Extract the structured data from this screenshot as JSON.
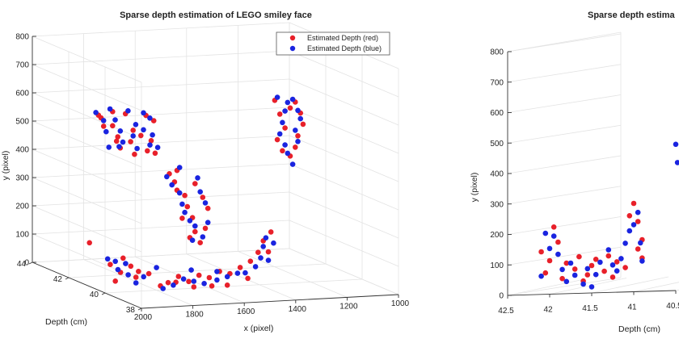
{
  "chart_data": [
    {
      "type": "scatter",
      "title": "Sparse depth estimation of LEGO smiley face",
      "xlabel": "x (pixel)",
      "ylabel": "y (pixel)",
      "zlabel": "Depth (cm)",
      "x_ticks": [
        "2000",
        "1800",
        "1600",
        "1400",
        "1200",
        "1000"
      ],
      "y_ticks": [
        "0",
        "100",
        "200",
        "300",
        "400",
        "500",
        "600",
        "700",
        "800"
      ],
      "z_ticks": [
        "38",
        "40",
        "42",
        "44"
      ],
      "legend_position": "top-right",
      "series": [
        {
          "name": "Estimated Depth (red)",
          "color": "#e8202a",
          "points": [
            [
              1955,
              600,
              41
            ],
            [
              1945,
              590,
              41
            ],
            [
              1935,
              560,
              41
            ],
            [
              1920,
              520,
              40.5
            ],
            [
              1900,
              560,
              41
            ],
            [
              1880,
              520,
              41
            ],
            [
              1870,
              480,
              41
            ],
            [
              1850,
              470,
              40.5
            ],
            [
              1830,
              500,
              41
            ],
            [
              1820,
              540,
              41
            ],
            [
              1800,
              480,
              40.5
            ],
            [
              1790,
              520,
              41
            ],
            [
              1770,
              470,
              40.5
            ],
            [
              1750,
              500,
              41
            ],
            [
              1770,
              590,
              41
            ],
            [
              1740,
              570,
              41
            ],
            [
              1900,
              610,
              41
            ],
            [
              1850,
              600,
              41
            ],
            [
              1750,
              410,
              40
            ],
            [
              1730,
              380,
              40
            ],
            [
              1720,
              350,
              40
            ],
            [
              1690,
              330,
              40
            ],
            [
              1680,
              290,
              40
            ],
            [
              1700,
              250,
              40
            ],
            [
              1660,
              250,
              40
            ],
            [
              1650,
              200,
              40
            ],
            [
              1670,
              180,
              40
            ],
            [
              1630,
              160,
              40
            ],
            [
              1610,
              210,
              40
            ],
            [
              1600,
              280,
              40
            ],
            [
              1620,
              320,
              40
            ],
            [
              1650,
              370,
              40
            ],
            [
              1720,
              420,
              40
            ],
            [
              1260,
              640,
              40
            ],
            [
              1240,
              600,
              40
            ],
            [
              1230,
              560,
              40
            ],
            [
              1250,
              520,
              40
            ],
            [
              1260,
              480,
              40
            ],
            [
              1280,
              450,
              40
            ],
            [
              1310,
              470,
              40
            ],
            [
              1330,
              510,
              40
            ],
            [
              1300,
              550,
              40
            ],
            [
              1320,
              600,
              40
            ],
            [
              1280,
              620,
              40
            ],
            [
              1340,
              650,
              40
            ],
            [
              1980,
              100,
              40
            ],
            [
              1990,
              150,
              41
            ],
            [
              1930,
              120,
              40
            ],
            [
              1900,
              90,
              40
            ],
            [
              1870,
              70,
              40
            ],
            [
              1830,
              60,
              40
            ],
            [
              1790,
              40,
              39.5
            ],
            [
              1750,
              60,
              39.5
            ],
            [
              1710,
              40,
              39.5
            ],
            [
              1670,
              60,
              39.5
            ],
            [
              1630,
              50,
              39.5
            ],
            [
              1590,
              70,
              39.5
            ],
            [
              1550,
              60,
              39.5
            ],
            [
              1510,
              80,
              39.5
            ],
            [
              1470,
              100,
              39.5
            ],
            [
              1440,
              130,
              39.5
            ],
            [
              1420,
              170,
              39.5
            ],
            [
              1400,
              130,
              39.5
            ],
            [
              1390,
              200,
              39.5
            ],
            [
              1960,
              40,
              40
            ],
            [
              1940,
              70,
              40
            ],
            [
              1880,
              50,
              40
            ],
            [
              1820,
              30,
              39.5
            ],
            [
              1760,
              40,
              39.5
            ],
            [
              1690,
              20,
              39.5
            ],
            [
              1620,
              20,
              39.5
            ],
            [
              1560,
              20,
              39.5
            ],
            [
              1480,
              40,
              39.5
            ]
          ]
        },
        {
          "name": "Estimated Depth (blue)",
          "color": "#1a24e0",
          "points": [
            [
              1965,
              610,
              41
            ],
            [
              1935,
              580,
              41
            ],
            [
              1925,
              540,
              41
            ],
            [
              1910,
              500,
              40.5
            ],
            [
              1890,
              580,
              41
            ],
            [
              1870,
              540,
              41
            ],
            [
              1860,
              500,
              41
            ],
            [
              1840,
              490,
              40.5
            ],
            [
              1820,
              520,
              41
            ],
            [
              1810,
              560,
              41
            ],
            [
              1790,
              500,
              40.5
            ],
            [
              1780,
              540,
              41
            ],
            [
              1760,
              490,
              40.5
            ],
            [
              1745,
              520,
              41
            ],
            [
              1780,
              600,
              41
            ],
            [
              1755,
              580,
              41
            ],
            [
              1910,
              620,
              41
            ],
            [
              1840,
              610,
              41
            ],
            [
              1950,
              500,
              40.5
            ],
            [
              1760,
              400,
              40
            ],
            [
              1740,
              370,
              40
            ],
            [
              1710,
              340,
              40
            ],
            [
              1700,
              300,
              40
            ],
            [
              1690,
              270,
              40
            ],
            [
              1670,
              240,
              40
            ],
            [
              1650,
              220,
              40
            ],
            [
              1660,
              170,
              40
            ],
            [
              1620,
              180,
              40
            ],
            [
              1600,
              230,
              40
            ],
            [
              1610,
              300,
              40
            ],
            [
              1630,
              340,
              40
            ],
            [
              1640,
              390,
              40
            ],
            [
              1710,
              430,
              40
            ],
            [
              1270,
              650,
              40
            ],
            [
              1250,
              610,
              40
            ],
            [
              1240,
              580,
              40
            ],
            [
              1260,
              540,
              40
            ],
            [
              1250,
              500,
              40
            ],
            [
              1290,
              460,
              40
            ],
            [
              1300,
              490,
              40
            ],
            [
              1320,
              530,
              40
            ],
            [
              1310,
              570,
              40
            ],
            [
              1300,
              610,
              40
            ],
            [
              1290,
              640,
              40
            ],
            [
              1330,
              660,
              40
            ],
            [
              1270,
              420,
              40
            ],
            [
              1990,
              120,
              40
            ],
            [
              1960,
              110,
              40
            ],
            [
              1950,
              80,
              40
            ],
            [
              1920,
              100,
              40
            ],
            [
              1910,
              60,
              40
            ],
            [
              1880,
              30,
              40
            ],
            [
              1850,
              50,
              40
            ],
            [
              1810,
              20,
              39.5
            ],
            [
              1770,
              30,
              39.5
            ],
            [
              1730,
              50,
              39.5
            ],
            [
              1690,
              40,
              39.5
            ],
            [
              1650,
              30,
              39.5
            ],
            [
              1600,
              40,
              39.5
            ],
            [
              1560,
              50,
              39.5
            ],
            [
              1520,
              60,
              39.5
            ],
            [
              1490,
              60,
              39.5
            ],
            [
              1450,
              80,
              39.5
            ],
            [
              1430,
              110,
              39.5
            ],
            [
              1420,
              150,
              39.5
            ],
            [
              1410,
              180,
              39.5
            ],
            [
              1380,
              160,
              39.5
            ],
            [
              1400,
              100,
              39.5
            ],
            [
              1600,
              70,
              39.5
            ],
            [
              1700,
              80,
              39.5
            ],
            [
              1800,
              80,
              40
            ]
          ]
        }
      ]
    },
    {
      "type": "scatter",
      "title": "Sparse depth estima",
      "xlabel": "",
      "ylabel": "y (pixel)",
      "zlabel": "Depth (cm)",
      "z_ticks": [
        "42.5",
        "42",
        "41.5",
        "41",
        "40.5"
      ],
      "y_ticks": [
        "0",
        "100",
        "200",
        "300",
        "400",
        "500",
        "600",
        "700",
        "800"
      ],
      "series": [
        {
          "name": "Estimated Depth (red)",
          "color": "#e8202a",
          "points": [
            [
              42.1,
              140
            ],
            [
              42.0,
              110
            ],
            [
              41.95,
              220
            ],
            [
              41.9,
              170
            ],
            [
              41.8,
              100
            ],
            [
              41.7,
              80
            ],
            [
              41.65,
              120
            ],
            [
              41.55,
              60
            ],
            [
              41.5,
              90
            ],
            [
              41.45,
              110
            ],
            [
              41.35,
              70
            ],
            [
              41.3,
              120
            ],
            [
              41.2,
              100
            ],
            [
              41.1,
              80
            ],
            [
              41.05,
              250
            ],
            [
              41.0,
              290
            ],
            [
              40.95,
              230
            ],
            [
              40.9,
              170
            ],
            [
              40.9,
              110
            ],
            [
              41.25,
              50
            ],
            [
              41.6,
              40
            ],
            [
              41.85,
              50
            ],
            [
              42.05,
              70
            ],
            [
              40.95,
              140
            ]
          ]
        },
        {
          "name": "Estimated Depth (blue)",
          "color": "#1a24e0",
          "points": [
            [
              42.05,
              200
            ],
            [
              42.0,
              150
            ],
            [
              41.95,
              190
            ],
            [
              41.9,
              130
            ],
            [
              41.85,
              80
            ],
            [
              41.75,
              100
            ],
            [
              41.7,
              60
            ],
            [
              41.6,
              30
            ],
            [
              41.55,
              80
            ],
            [
              41.45,
              60
            ],
            [
              41.4,
              100
            ],
            [
              41.3,
              140
            ],
            [
              41.2,
              70
            ],
            [
              41.15,
              110
            ],
            [
              41.1,
              160
            ],
            [
              41.05,
              200
            ],
            [
              41.0,
              220
            ],
            [
              40.95,
              260
            ],
            [
              40.92,
              160
            ],
            [
              40.9,
              100
            ],
            [
              41.25,
              90
            ],
            [
              41.5,
              20
            ],
            [
              41.8,
              40
            ],
            [
              42.1,
              60
            ],
            [
              40.5,
              480
            ],
            [
              40.48,
              420
            ]
          ]
        }
      ]
    }
  ]
}
